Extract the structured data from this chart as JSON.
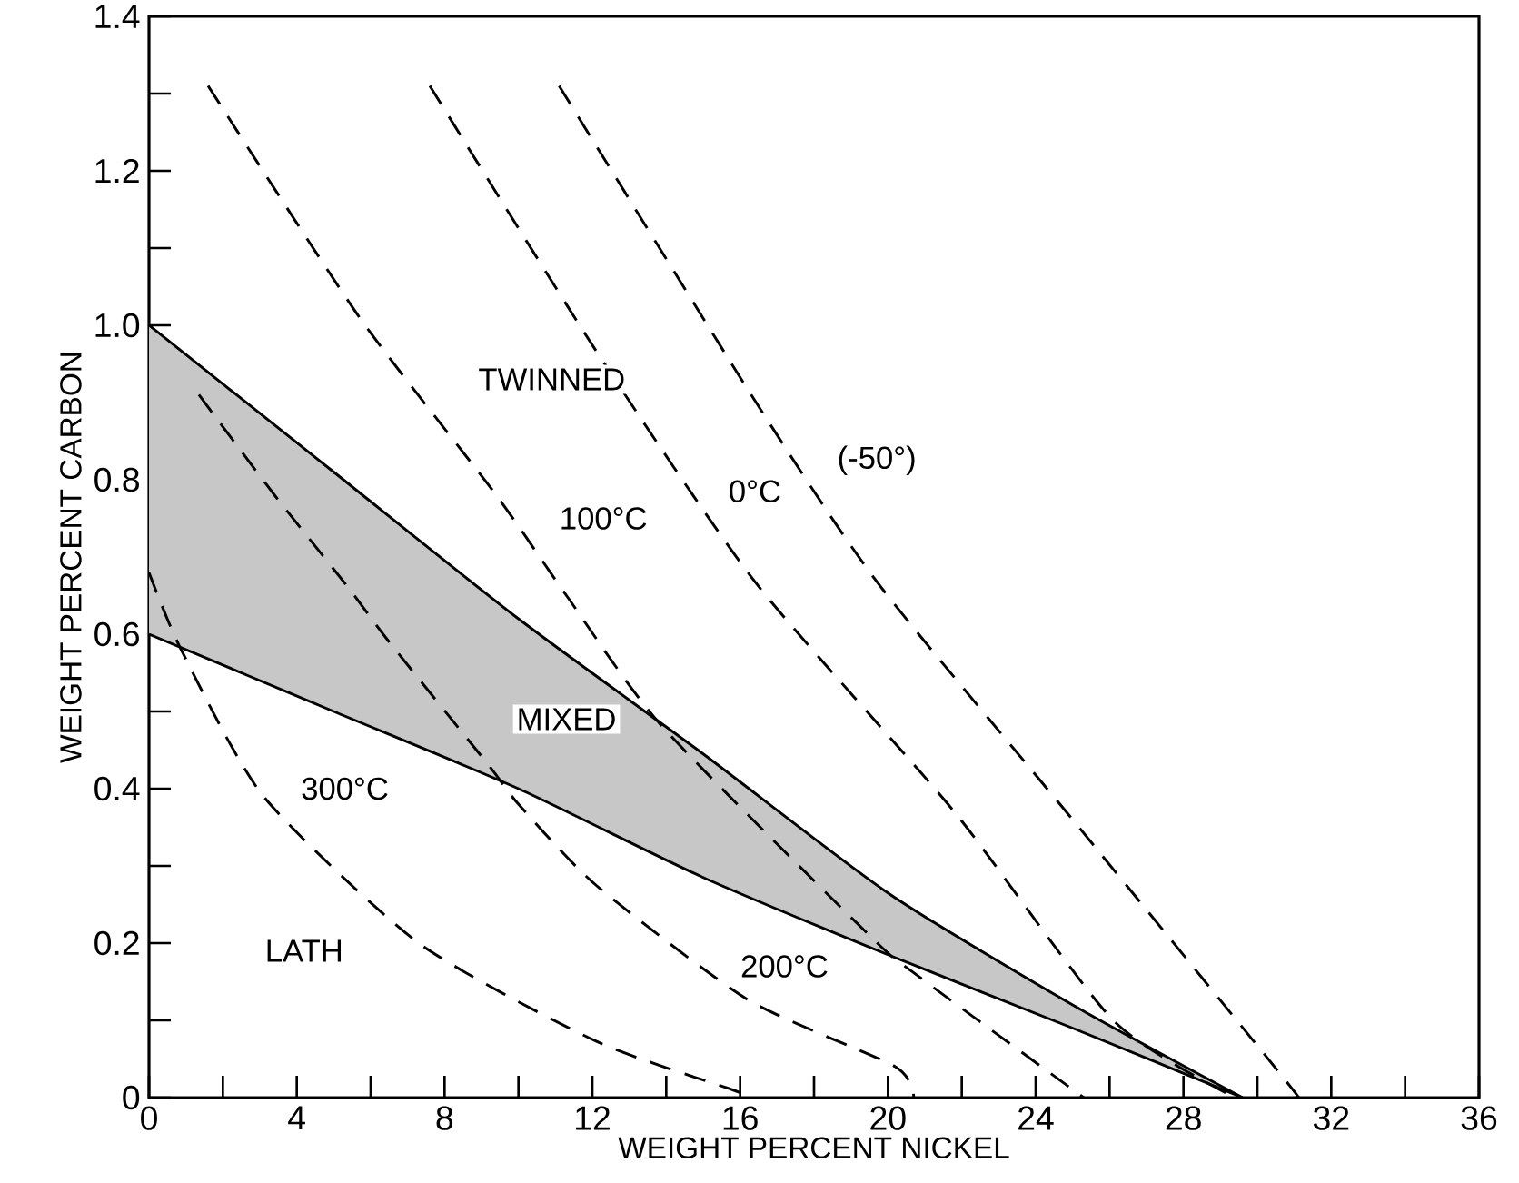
{
  "chart_data": {
    "type": "line",
    "xlabel": "WEIGHT PERCENT NICKEL",
    "ylabel": "WEIGHT PERCENT CARBON",
    "xlim": [
      0,
      36
    ],
    "ylim": [
      0,
      1.4
    ],
    "xticks": [
      0,
      {
        "value": 2,
        "label": null
      },
      4,
      {
        "value": 6,
        "label": null
      },
      8,
      {
        "value": 10,
        "label": null
      },
      12,
      {
        "value": 14,
        "label": null
      },
      16,
      {
        "value": 18,
        "label": null
      },
      20,
      {
        "value": 22,
        "label": null
      },
      24,
      {
        "value": 26,
        "label": null
      },
      28,
      {
        "value": 30,
        "label": null
      },
      32,
      {
        "value": 34,
        "label": null
      },
      36
    ],
    "yticks": [
      {
        "value": 0,
        "label": "0"
      },
      {
        "value": 0.1,
        "label": null
      },
      {
        "value": 0.2,
        "label": "0.2"
      },
      {
        "value": 0.3,
        "label": null
      },
      {
        "value": 0.4,
        "label": "0.4"
      },
      {
        "value": 0.5,
        "label": null
      },
      {
        "value": 0.6,
        "label": "0.6"
      },
      {
        "value": 0.7,
        "label": null
      },
      {
        "value": 0.8,
        "label": "0.8"
      },
      {
        "value": 0.9,
        "label": null
      },
      {
        "value": 1.0,
        "label": "1.0"
      },
      {
        "value": 1.1,
        "label": null
      },
      {
        "value": 1.2,
        "label": "1.2"
      },
      {
        "value": 1.3,
        "label": null
      },
      {
        "value": 1.4,
        "label": "1.4"
      }
    ],
    "grid": false,
    "marker": "none",
    "line_style": "dashed",
    "series": [
      {
        "color": "#000000",
        "line_style": "solid",
        "x": [
          0,
          5,
          10,
          15,
          20,
          25,
          29.6
        ],
        "values": [
          1.0,
          0.81,
          0.62,
          0.445,
          0.265,
          0.12,
          0
        ],
        "lower": [
          0.6,
          0.5,
          0.4,
          0.285,
          0.185,
          0.09,
          0
        ],
        "upper": [
          1.0,
          0.81,
          0.62,
          0.445,
          0.265,
          0.12,
          0
        ]
      },
      {
        "color": "#000000",
        "line_style": "solid",
        "x": [
          0,
          5,
          10,
          15,
          20,
          25,
          29.6
        ],
        "values": [
          0.6,
          0.5,
          0.4,
          0.285,
          0.185,
          0.09,
          0
        ]
      },
      {
        "name": "300°C",
        "color": "#000000",
        "x": [
          0,
          0.87,
          3.1,
          7.3,
          12.1,
          15.8,
          16.3
        ],
        "values": [
          0.68,
          0.58,
          0.39,
          0.2,
          0.073,
          0.01,
          0
        ]
      },
      {
        "name": "200°C",
        "color": "#000000",
        "x": [
          1.35,
          3.4,
          5.4,
          6.5,
          9.2,
          10,
          12.1,
          16.2,
          20.2,
          20.7
        ],
        "values": [
          0.91,
          0.78,
          0.66,
          0.59,
          0.43,
          0.38,
          0.275,
          0.127,
          0.04,
          0
        ]
      },
      {
        "name": "100°C",
        "color": "#000000",
        "x": [
          1.6,
          5.7,
          9.4,
          11.3,
          13.9,
          19.5,
          20.8,
          25.3
        ],
        "values": [
          1.31,
          1.01,
          0.78,
          0.65,
          0.48,
          0.21,
          0.158,
          0
        ]
      },
      {
        "name": "0°C",
        "color": "#000000",
        "x": [
          7.6,
          12.1,
          16.4,
          21.8,
          26.1,
          29.4
        ],
        "values": [
          1.31,
          0.967,
          0.668,
          0.37,
          0.1,
          0
        ]
      },
      {
        "name": "(-50°)",
        "color": "#000000",
        "x": [
          11.1,
          16.3,
          19.7,
          25,
          30.9,
          31
        ],
        "values": [
          1.31,
          0.91,
          0.668,
          0.36,
          0.014,
          0
        ]
      }
    ],
    "annotations": [
      "TWINNED",
      "MIXED",
      "LATH"
    ]
  }
}
